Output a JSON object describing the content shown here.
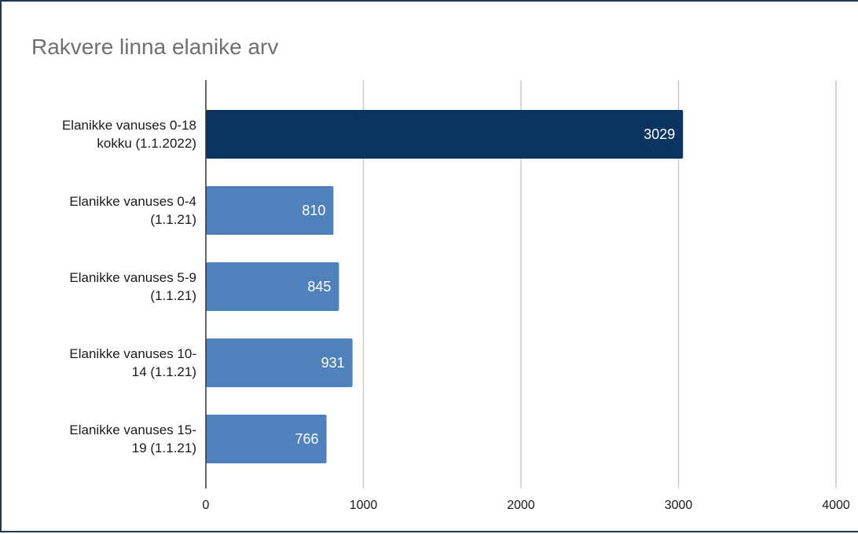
{
  "chart_data": {
    "type": "bar",
    "orientation": "horizontal",
    "title": "Rakvere linna elanike arv",
    "categories": [
      [
        "Elanikke vanuses 0-18",
        "kokku (1.1.2022)"
      ],
      [
        "Elanikke vanuses 0-4",
        "(1.1.21)"
      ],
      [
        "Elanikke vanuses 5-9",
        "(1.1.21)"
      ],
      [
        "Elanikke vanuses 10-",
        "14 (1.1.21)"
      ],
      [
        "Elanikke vanuses 15-",
        "19 (1.1.21)"
      ]
    ],
    "values": [
      3029,
      810,
      845,
      931,
      766
    ],
    "data_labels": [
      "3029",
      "810",
      "845",
      "931",
      "766"
    ],
    "bar_colors": [
      "#0b3560",
      "#4f81bd",
      "#4f81bd",
      "#4f81bd",
      "#4f81bd"
    ],
    "xlim": [
      0,
      4000
    ],
    "x_ticks": [
      0,
      1000,
      2000,
      3000,
      4000
    ],
    "x_tick_labels": [
      "0",
      "1000",
      "2000",
      "3000",
      "4000"
    ],
    "grid": "vertical",
    "legend": "none"
  }
}
